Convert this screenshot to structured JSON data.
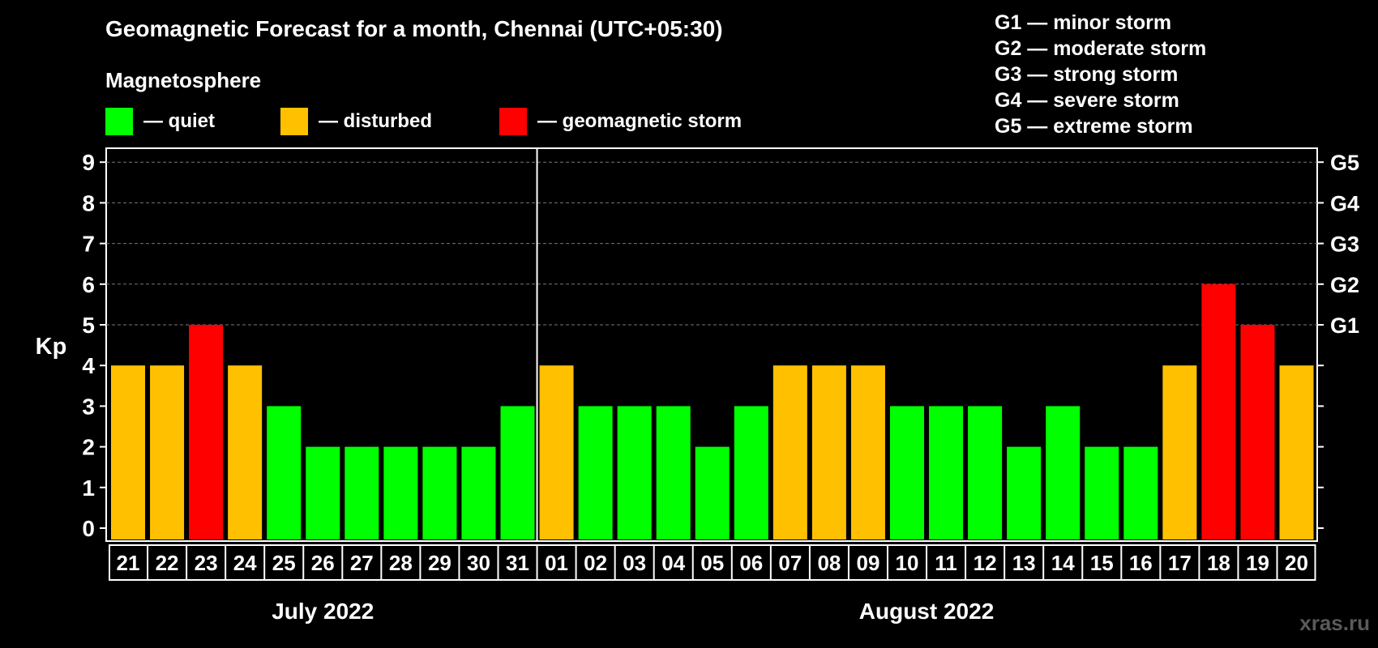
{
  "title": "Geomagnetic Forecast for a month, Chennai (UTC+05:30)",
  "legend": {
    "heading": "Magnetosphere",
    "items": [
      {
        "label": "— quiet",
        "color": "#00ff00"
      },
      {
        "label": "— disturbed",
        "color": "#ffc000"
      },
      {
        "label": "— geomagnetic storm",
        "color": "#ff0000"
      }
    ]
  },
  "storm_levels": [
    "G1 — minor storm",
    "G2 — moderate storm",
    "G3 — strong storm",
    "G4 — severe storm",
    "G5 — extreme storm"
  ],
  "watermark": "xras.ru",
  "chart_data": {
    "type": "bar",
    "title": "Geomagnetic Forecast for a month, Chennai (UTC+05:30)",
    "ylabel": "Kp",
    "ylim": [
      0,
      9
    ],
    "yticks": [
      "0",
      "1",
      "2",
      "3",
      "4",
      "5",
      "6",
      "7",
      "8",
      "9"
    ],
    "right_axis_labels": [
      {
        "kp": 5,
        "label": "G1"
      },
      {
        "kp": 6,
        "label": "G2"
      },
      {
        "kp": 7,
        "label": "G3"
      },
      {
        "kp": 8,
        "label": "G4"
      },
      {
        "kp": 9,
        "label": "G5"
      }
    ],
    "grid": true,
    "categories": [
      "21",
      "22",
      "23",
      "24",
      "25",
      "26",
      "27",
      "28",
      "29",
      "30",
      "31",
      "01",
      "02",
      "03",
      "04",
      "05",
      "06",
      "07",
      "08",
      "09",
      "10",
      "11",
      "12",
      "13",
      "14",
      "15",
      "16",
      "17",
      "18",
      "19",
      "20"
    ],
    "values": [
      4,
      4,
      5,
      4,
      3,
      2,
      2,
      2,
      2,
      2,
      3,
      4,
      3,
      3,
      3,
      2,
      3,
      4,
      4,
      4,
      3,
      3,
      3,
      2,
      3,
      2,
      2,
      4,
      6,
      5,
      4
    ],
    "colors": {
      "quiet": "#00ff00",
      "disturbed": "#ffc000",
      "storm": "#ff0000"
    },
    "months": [
      {
        "label": "July 2022",
        "first_index": 0,
        "last_index": 10
      },
      {
        "label": "August 2022",
        "first_index": 11,
        "last_index": 30
      }
    ]
  }
}
